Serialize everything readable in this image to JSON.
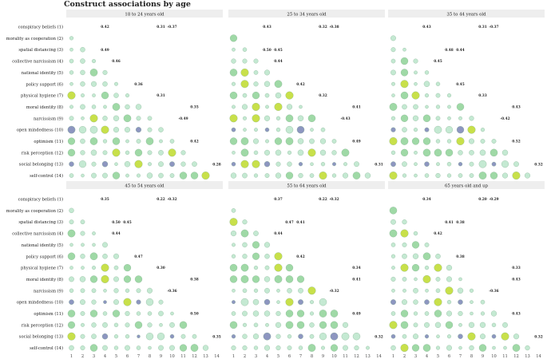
{
  "title": "Construct associations by age",
  "chart_data": {
    "type": "heatmap",
    "title": "Construct associations by age",
    "rows": [
      "conspiracy beliefs (1)",
      "morality as cooperation (2)",
      "spatial distancing (3)",
      "collective narcissism (4)",
      "national identity (5)",
      "policy support (6)",
      "physical hygiene (7)",
      "moral identity (8)",
      "narcissism (9)",
      "open mindedness (10)",
      "optimism (11)",
      "risk perception (12)",
      "social belonging (13)",
      "self-control (14)"
    ],
    "columns": [
      "1",
      "2",
      "3",
      "4",
      "5",
      "6",
      "7",
      "8",
      "9",
      "10",
      "11",
      "12",
      "13",
      "14"
    ],
    "panels": [
      {
        "name": "18 to 24 years old",
        "labels": [
          {
            "row": 1,
            "col": 4,
            "value": 0.42
          },
          {
            "row": 1,
            "col": 9,
            "value": 0.31
          },
          {
            "row": 1,
            "col": 10,
            "value": -0.37
          },
          {
            "row": 3,
            "col": 4,
            "value": 0.49
          },
          {
            "row": 4,
            "col": 5,
            "value": 0.46
          },
          {
            "row": 6,
            "col": 7,
            "value": 0.36
          },
          {
            "row": 7,
            "col": 9,
            "value": 0.31
          },
          {
            "row": 8,
            "col": 12,
            "value": 0.35
          },
          {
            "row": 9,
            "col": 11,
            "value": -0.49
          },
          {
            "row": 11,
            "col": 12,
            "value": 0.42
          },
          {
            "row": 13,
            "col": 14,
            "value": 0.28
          }
        ]
      },
      {
        "name": "25 to 34 years old",
        "labels": [
          {
            "row": 1,
            "col": 4,
            "value": 0.43
          },
          {
            "row": 1,
            "col": 9,
            "value": 0.32
          },
          {
            "row": 1,
            "col": 10,
            "value": -0.38
          },
          {
            "row": 3,
            "col": 5,
            "value": 0.45
          },
          {
            "row": 3,
            "col": 4,
            "value": 0.5
          },
          {
            "row": 4,
            "col": 5,
            "value": 0.44
          },
          {
            "row": 6,
            "col": 7,
            "value": 0.42
          },
          {
            "row": 7,
            "col": 9,
            "value": 0.32
          },
          {
            "row": 8,
            "col": 12,
            "value": 0.41
          },
          {
            "row": 9,
            "col": 11,
            "value": -0.43
          },
          {
            "row": 11,
            "col": 12,
            "value": 0.49
          },
          {
            "row": 13,
            "col": 14,
            "value": 0.31
          }
        ]
      },
      {
        "name": "35 to 44 years old",
        "labels": [
          {
            "row": 1,
            "col": 4,
            "value": 0.43
          },
          {
            "row": 1,
            "col": 9,
            "value": 0.31
          },
          {
            "row": 1,
            "col": 10,
            "value": -0.37
          },
          {
            "row": 3,
            "col": 6,
            "value": 0.48
          },
          {
            "row": 3,
            "col": 7,
            "value": 0.44
          },
          {
            "row": 4,
            "col": 5,
            "value": 0.45
          },
          {
            "row": 6,
            "col": 7,
            "value": 0.45
          },
          {
            "row": 7,
            "col": 9,
            "value": 0.33
          },
          {
            "row": 8,
            "col": 12,
            "value": 0.43
          },
          {
            "row": 9,
            "col": 11,
            "value": -0.42
          },
          {
            "row": 11,
            "col": 12,
            "value": 0.52
          },
          {
            "row": 13,
            "col": 14,
            "value": 0.32
          }
        ]
      },
      {
        "name": "45 to 54 years old",
        "labels": [
          {
            "row": 1,
            "col": 4,
            "value": 0.35
          },
          {
            "row": 1,
            "col": 9,
            "value": 0.22
          },
          {
            "row": 1,
            "col": 10,
            "value": -0.32
          },
          {
            "row": 3,
            "col": 6,
            "value": 0.45
          },
          {
            "row": 3,
            "col": 5,
            "value": 0.5
          },
          {
            "row": 4,
            "col": 5,
            "value": 0.44
          },
          {
            "row": 6,
            "col": 7,
            "value": 0.47
          },
          {
            "row": 7,
            "col": 9,
            "value": 0.3
          },
          {
            "row": 8,
            "col": 12,
            "value": 0.38
          },
          {
            "row": 9,
            "col": 10,
            "value": -0.36
          },
          {
            "row": 11,
            "col": 12,
            "value": 0.5
          },
          {
            "row": 13,
            "col": 14,
            "value": 0.35
          }
        ]
      },
      {
        "name": "55 to 64 years old",
        "labels": [
          {
            "row": 1,
            "col": 5,
            "value": 0.37
          },
          {
            "row": 1,
            "col": 9,
            "value": 0.22
          },
          {
            "row": 1,
            "col": 10,
            "value": -0.32
          },
          {
            "row": 3,
            "col": 6,
            "value": 0.47
          },
          {
            "row": 3,
            "col": 7,
            "value": 0.41
          },
          {
            "row": 4,
            "col": 5,
            "value": 0.44
          },
          {
            "row": 6,
            "col": 7,
            "value": 0.42
          },
          {
            "row": 7,
            "col": 12,
            "value": 0.34
          },
          {
            "row": 8,
            "col": 12,
            "value": 0.41
          },
          {
            "row": 9,
            "col": 10,
            "value": -0.32
          },
          {
            "row": 11,
            "col": 12,
            "value": 0.49
          },
          {
            "row": 13,
            "col": 14,
            "value": 0.32
          }
        ]
      },
      {
        "name": "65 years old and up",
        "labels": [
          {
            "row": 1,
            "col": 4,
            "value": 0.34
          },
          {
            "row": 1,
            "col": 9,
            "value": 0.2
          },
          {
            "row": 1,
            "col": 10,
            "value": -0.29
          },
          {
            "row": 3,
            "col": 6,
            "value": 0.41
          },
          {
            "row": 3,
            "col": 7,
            "value": 0.38
          },
          {
            "row": 4,
            "col": 5,
            "value": 0.42
          },
          {
            "row": 6,
            "col": 7,
            "value": 0.38
          },
          {
            "row": 7,
            "col": 12,
            "value": 0.33
          },
          {
            "row": 8,
            "col": 12,
            "value": 0.43
          },
          {
            "row": 9,
            "col": 10,
            "value": -0.36
          },
          {
            "row": 11,
            "col": 12,
            "value": 0.43
          },
          {
            "row": 13,
            "col": 14,
            "value": 0.32
          }
        ]
      }
    ],
    "colors": {
      "positive_strong": "#c8e04a",
      "positive": "#9fd9a6",
      "positive_weak": "#c4e9d2",
      "negative": "#8d96c0",
      "panel_header_bg": "#eeeeee"
    }
  }
}
